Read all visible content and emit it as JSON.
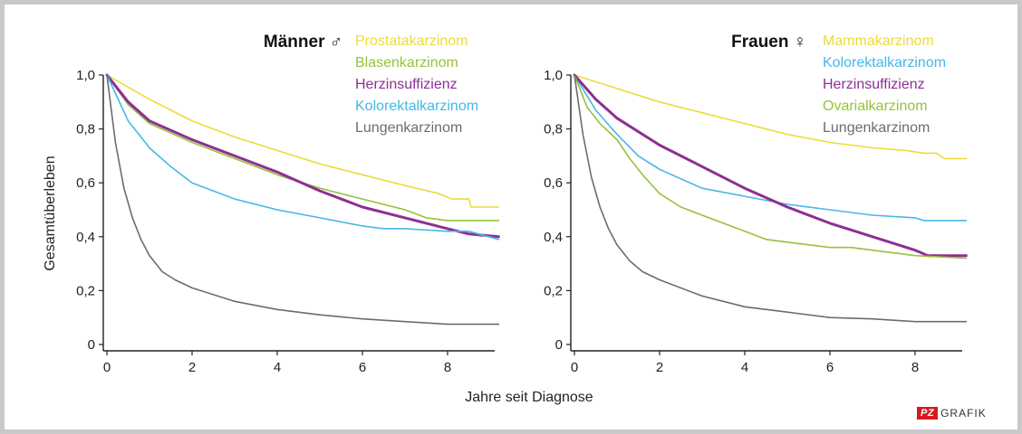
{
  "y_axis_label": "Gesamtüberleben",
  "x_axis_label": "Jahre seit Diagnose",
  "logo": {
    "mark": "PZ",
    "text": "GRAFIK"
  },
  "colors": {
    "yellow": "#ecdb3a",
    "green": "#97c13d",
    "purple": "#8e2f91",
    "blue": "#47b7e6",
    "gray": "#6c6c6c"
  },
  "chart_data": [
    {
      "type": "line",
      "title": "Männer ♂",
      "xlim": [
        0,
        9.2
      ],
      "ylim": [
        0,
        1.0
      ],
      "x_ticks": [
        0,
        2,
        4,
        6,
        8
      ],
      "x_tick_labels": [
        "0",
        "2",
        "4",
        "6",
        "8"
      ],
      "y_ticks": [
        0,
        0.2,
        0.4,
        0.6,
        0.8,
        1.0
      ],
      "y_tick_labels": [
        "0",
        "0,2",
        "0,4",
        "0,6",
        "0,8",
        "1,0"
      ],
      "legend_position": "top-right",
      "series": [
        {
          "name": "Prostatakarzinom",
          "color": "#ecdb3a",
          "points": [
            [
              0,
              1.0
            ],
            [
              1,
              0.91
            ],
            [
              2,
              0.83
            ],
            [
              3,
              0.77
            ],
            [
              4,
              0.72
            ],
            [
              5,
              0.67
            ],
            [
              6,
              0.63
            ],
            [
              7,
              0.59
            ],
            [
              7.8,
              0.56
            ],
            [
              8.1,
              0.54
            ],
            [
              8.5,
              0.54
            ],
            [
              8.55,
              0.51
            ],
            [
              9.2,
              0.51
            ]
          ]
        },
        {
          "name": "Blasenkarzinom",
          "color": "#97c13d",
          "points": [
            [
              0,
              1.0
            ],
            [
              0.5,
              0.89
            ],
            [
              1,
              0.82
            ],
            [
              2,
              0.75
            ],
            [
              3,
              0.69
            ],
            [
              4,
              0.63
            ],
            [
              5,
              0.58
            ],
            [
              6,
              0.54
            ],
            [
              7,
              0.5
            ],
            [
              7.5,
              0.47
            ],
            [
              8,
              0.46
            ],
            [
              9.2,
              0.46
            ]
          ]
        },
        {
          "name": "Herzinsuffizienz",
          "color": "#8e2f91",
          "points": [
            [
              0,
              1.0
            ],
            [
              0.5,
              0.9
            ],
            [
              1,
              0.83
            ],
            [
              2,
              0.76
            ],
            [
              3,
              0.7
            ],
            [
              4,
              0.64
            ],
            [
              5,
              0.57
            ],
            [
              6,
              0.51
            ],
            [
              7,
              0.47
            ],
            [
              8,
              0.43
            ],
            [
              8.5,
              0.41
            ],
            [
              9.2,
              0.4
            ]
          ]
        },
        {
          "name": "Kolorektalkarzinom",
          "color": "#47b7e6",
          "points": [
            [
              0,
              1.0
            ],
            [
              0.5,
              0.83
            ],
            [
              1,
              0.73
            ],
            [
              1.5,
              0.66
            ],
            [
              2,
              0.6
            ],
            [
              3,
              0.54
            ],
            [
              4,
              0.5
            ],
            [
              5,
              0.47
            ],
            [
              6,
              0.44
            ],
            [
              6.5,
              0.43
            ],
            [
              7,
              0.43
            ],
            [
              8,
              0.42
            ],
            [
              8.5,
              0.42
            ],
            [
              9.2,
              0.39
            ]
          ]
        },
        {
          "name": "Lungenkarzinom",
          "color": "#6c6c6c",
          "points": [
            [
              0,
              1.0
            ],
            [
              0.2,
              0.75
            ],
            [
              0.4,
              0.58
            ],
            [
              0.6,
              0.47
            ],
            [
              0.8,
              0.39
            ],
            [
              1,
              0.33
            ],
            [
              1.3,
              0.27
            ],
            [
              1.6,
              0.24
            ],
            [
              2,
              0.21
            ],
            [
              3,
              0.16
            ],
            [
              4,
              0.13
            ],
            [
              5,
              0.11
            ],
            [
              6,
              0.095
            ],
            [
              7,
              0.085
            ],
            [
              8,
              0.075
            ],
            [
              9.2,
              0.075
            ]
          ]
        }
      ]
    },
    {
      "type": "line",
      "title": "Frauen ♀",
      "xlim": [
        0,
        9.2
      ],
      "ylim": [
        0,
        1.0
      ],
      "x_ticks": [
        0,
        2,
        4,
        6,
        8
      ],
      "x_tick_labels": [
        "0",
        "2",
        "4",
        "6",
        "8"
      ],
      "y_ticks": [
        0,
        0.2,
        0.4,
        0.6,
        0.8,
        1.0
      ],
      "y_tick_labels": [
        "0",
        "0,2",
        "0,4",
        "0,6",
        "0,8",
        "1,0"
      ],
      "legend_position": "top-right",
      "series": [
        {
          "name": "Mammakarzinom",
          "color": "#ecdb3a",
          "points": [
            [
              0,
              1.0
            ],
            [
              1,
              0.95
            ],
            [
              2,
              0.9
            ],
            [
              3,
              0.86
            ],
            [
              4,
              0.82
            ],
            [
              5,
              0.78
            ],
            [
              6,
              0.75
            ],
            [
              7,
              0.73
            ],
            [
              7.8,
              0.72
            ],
            [
              8.2,
              0.71
            ],
            [
              8.5,
              0.71
            ],
            [
              8.7,
              0.69
            ],
            [
              9.2,
              0.69
            ]
          ]
        },
        {
          "name": "Kolorektalkarzinom",
          "color": "#47b7e6",
          "points": [
            [
              0,
              1.0
            ],
            [
              0.5,
              0.87
            ],
            [
              1,
              0.78
            ],
            [
              1.5,
              0.7
            ],
            [
              2,
              0.65
            ],
            [
              3,
              0.58
            ],
            [
              4,
              0.55
            ],
            [
              5,
              0.52
            ],
            [
              6,
              0.5
            ],
            [
              7,
              0.48
            ],
            [
              8,
              0.47
            ],
            [
              8.2,
              0.46
            ],
            [
              9.2,
              0.46
            ]
          ]
        },
        {
          "name": "Herzinsuffizienz",
          "color": "#8e2f91",
          "points": [
            [
              0,
              1.0
            ],
            [
              0.5,
              0.91
            ],
            [
              1,
              0.84
            ],
            [
              2,
              0.74
            ],
            [
              3,
              0.66
            ],
            [
              4,
              0.58
            ],
            [
              5,
              0.51
            ],
            [
              6,
              0.45
            ],
            [
              7,
              0.4
            ],
            [
              8,
              0.35
            ],
            [
              8.3,
              0.33
            ],
            [
              9.2,
              0.33
            ]
          ]
        },
        {
          "name": "Ovarialkarzinom",
          "color": "#97c13d",
          "points": [
            [
              0,
              1.0
            ],
            [
              0.3,
              0.88
            ],
            [
              0.6,
              0.82
            ],
            [
              1,
              0.76
            ],
            [
              1.3,
              0.69
            ],
            [
              1.6,
              0.63
            ],
            [
              2,
              0.56
            ],
            [
              2.5,
              0.51
            ],
            [
              3,
              0.48
            ],
            [
              3.5,
              0.45
            ],
            [
              4,
              0.42
            ],
            [
              4.5,
              0.39
            ],
            [
              5,
              0.38
            ],
            [
              5.5,
              0.37
            ],
            [
              6,
              0.36
            ],
            [
              6.5,
              0.36
            ],
            [
              7,
              0.35
            ],
            [
              7.5,
              0.34
            ],
            [
              8,
              0.33
            ],
            [
              9.2,
              0.32
            ]
          ]
        },
        {
          "name": "Lungenkarzinom",
          "color": "#6c6c6c",
          "points": [
            [
              0,
              1.0
            ],
            [
              0.2,
              0.78
            ],
            [
              0.4,
              0.62
            ],
            [
              0.6,
              0.51
            ],
            [
              0.8,
              0.43
            ],
            [
              1,
              0.37
            ],
            [
              1.3,
              0.31
            ],
            [
              1.6,
              0.27
            ],
            [
              2,
              0.24
            ],
            [
              3,
              0.18
            ],
            [
              4,
              0.14
            ],
            [
              5,
              0.12
            ],
            [
              6,
              0.1
            ],
            [
              7,
              0.095
            ],
            [
              8,
              0.085
            ],
            [
              9.2,
              0.085
            ]
          ]
        }
      ]
    }
  ]
}
